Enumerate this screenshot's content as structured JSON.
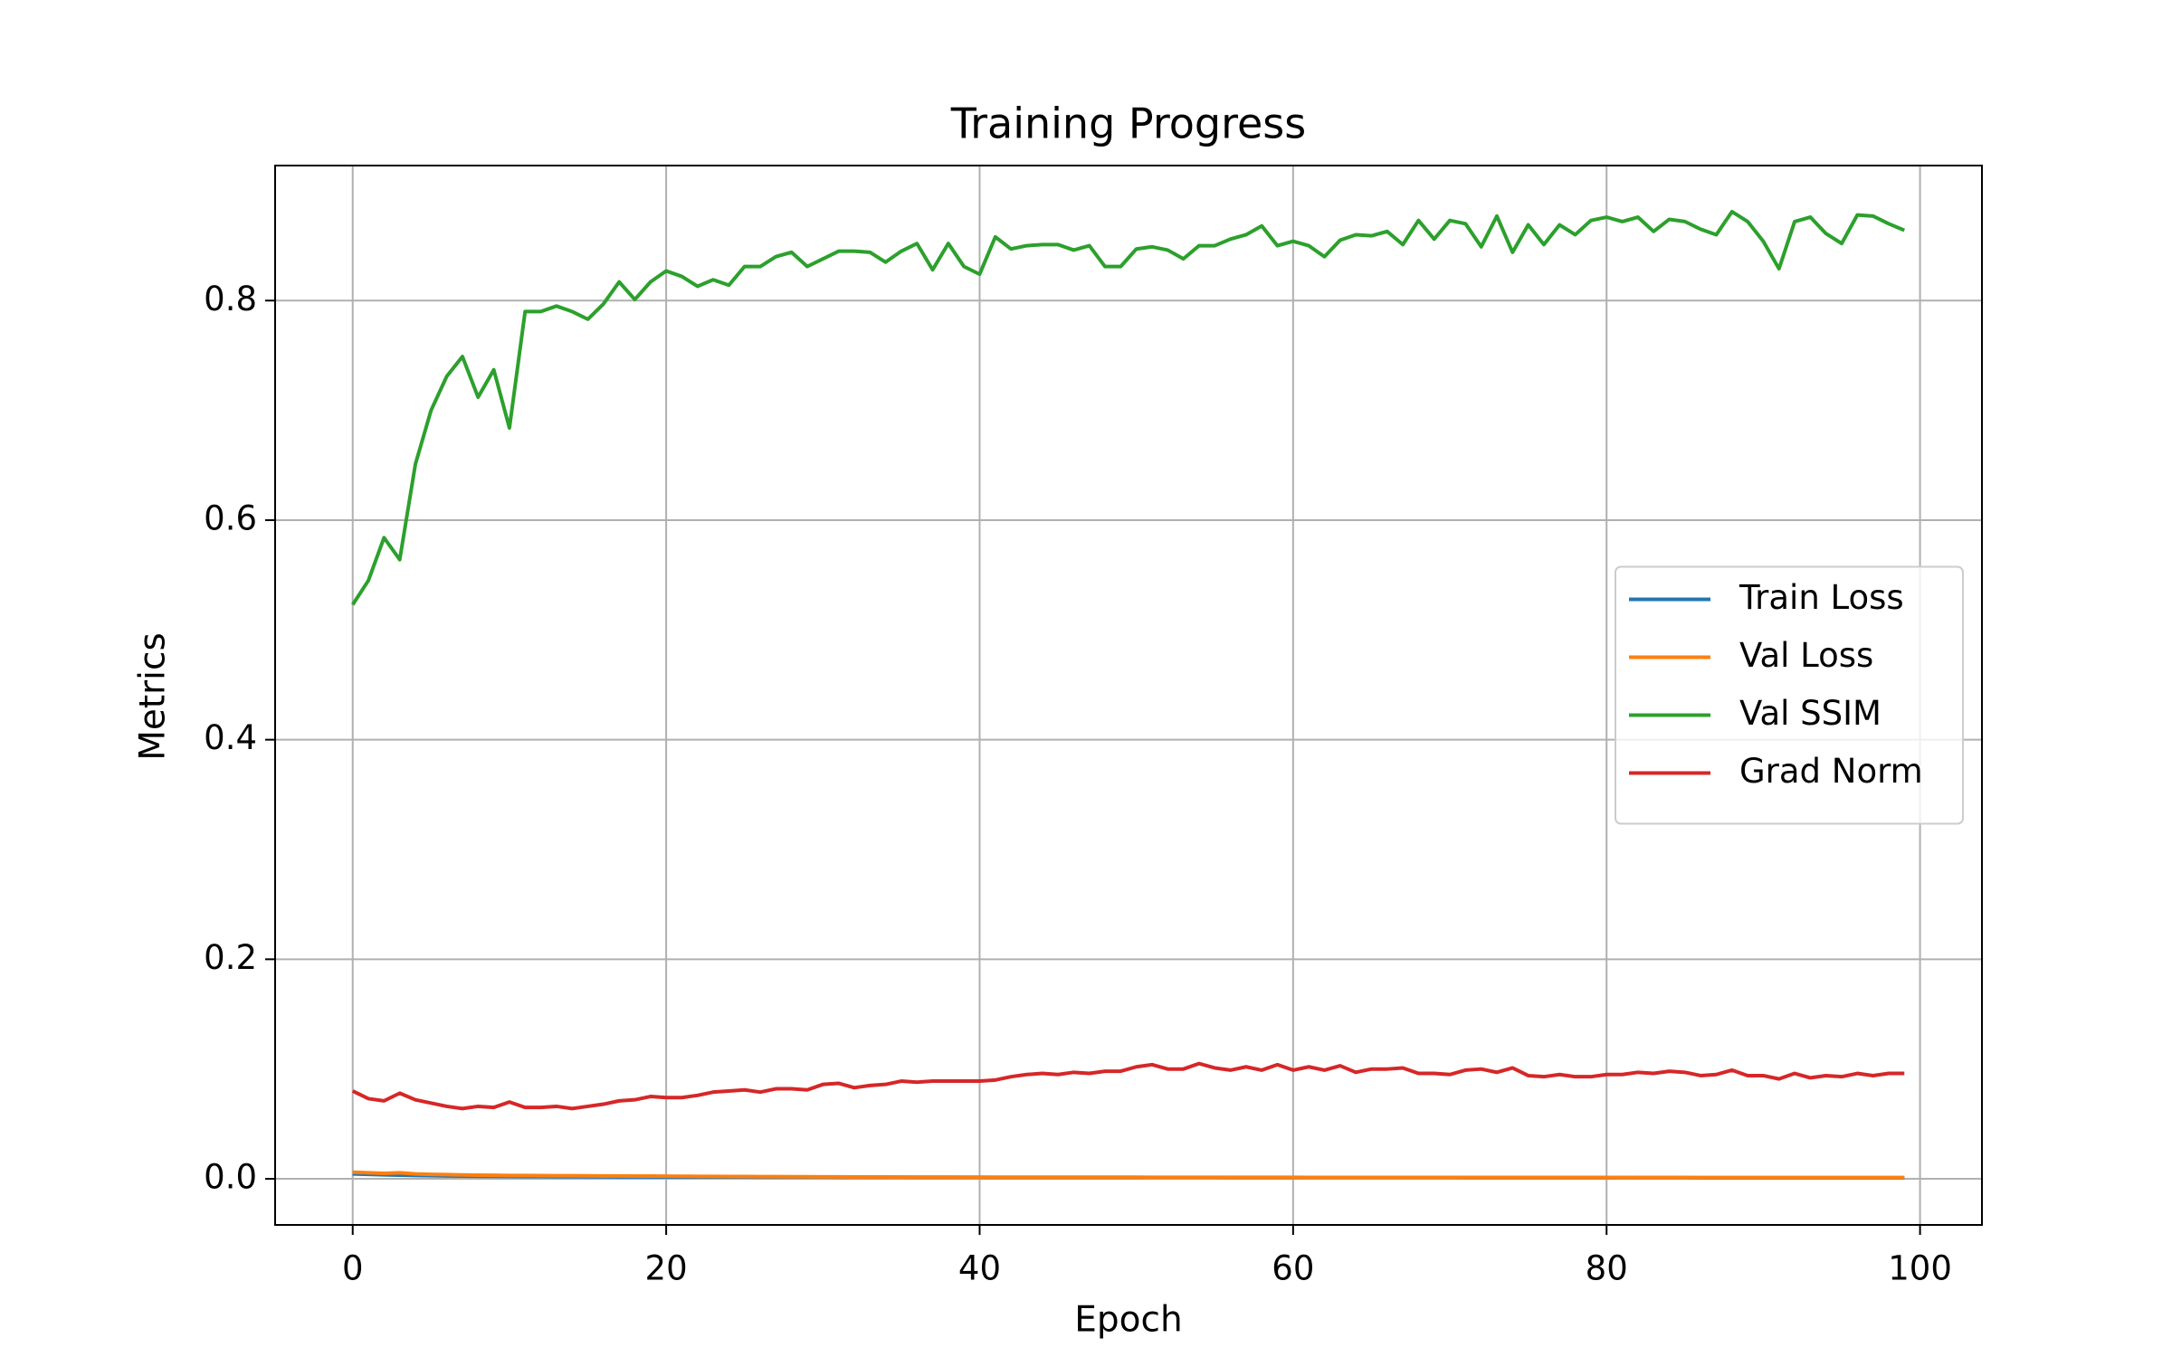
{
  "chart_data": {
    "type": "line",
    "title": "Training Progress",
    "x_label": "Epoch",
    "y_label": "Metrics",
    "x": [
      0,
      1,
      2,
      3,
      4,
      5,
      6,
      7,
      8,
      9,
      10,
      11,
      12,
      13,
      14,
      15,
      16,
      17,
      18,
      19,
      20,
      21,
      22,
      23,
      24,
      25,
      26,
      27,
      28,
      29,
      30,
      31,
      32,
      33,
      34,
      35,
      36,
      37,
      38,
      39,
      40,
      41,
      42,
      43,
      44,
      45,
      46,
      47,
      48,
      49,
      50,
      51,
      52,
      53,
      54,
      55,
      56,
      57,
      58,
      59,
      60,
      61,
      62,
      63,
      64,
      65,
      66,
      67,
      68,
      69,
      70,
      71,
      72,
      73,
      74,
      75,
      76,
      77,
      78,
      79,
      80,
      81,
      82,
      83,
      84,
      85,
      86,
      87,
      88,
      89,
      90,
      91,
      92,
      93,
      94,
      95,
      96,
      97,
      98,
      99
    ],
    "series": [
      {
        "name": "Train Loss",
        "color": "#1f77b4",
        "values": [
          0.0045,
          0.004,
          0.0036,
          0.0033,
          0.003,
          0.0028,
          0.0026,
          0.0025,
          0.0024,
          0.0023,
          0.0022,
          0.0021,
          0.0021,
          0.002,
          0.002,
          0.0019,
          0.0019,
          0.0018,
          0.0018,
          0.0018,
          0.0017,
          0.0017,
          0.0017,
          0.0017,
          0.0017,
          0.0017,
          0.0016,
          0.0016,
          0.0016,
          0.0016,
          0.0016,
          0.0015,
          0.0015,
          0.0015,
          0.0015,
          0.0015,
          0.0014,
          0.0014,
          0.0014,
          0.0014,
          0.0014,
          0.0013,
          0.0013,
          0.0013,
          0.0013,
          0.0013,
          0.0013,
          0.0013,
          0.0013,
          0.0013,
          0.0013,
          0.0013,
          0.0013,
          0.0013,
          0.0013,
          0.0013,
          0.0012,
          0.0012,
          0.0012,
          0.0012,
          0.0012,
          0.0012,
          0.0012,
          0.0012,
          0.0012,
          0.0012,
          0.0012,
          0.0012,
          0.0012,
          0.0012,
          0.0012,
          0.0011,
          0.0011,
          0.0011,
          0.0011,
          0.0011,
          0.0011,
          0.0011,
          0.0011,
          0.0011,
          0.0011,
          0.0011,
          0.0011,
          0.0011,
          0.0011,
          0.0011,
          0.001,
          0.001,
          0.001,
          0.001,
          0.001,
          0.001,
          0.001,
          0.001,
          0.001,
          0.001,
          0.001,
          0.001,
          0.001,
          0.001
        ]
      },
      {
        "name": "Val Loss",
        "color": "#ff7f0e",
        "values": [
          0.006,
          0.0055,
          0.005,
          0.0055,
          0.0045,
          0.004,
          0.0038,
          0.0035,
          0.0033,
          0.0032,
          0.003,
          0.003,
          0.0029,
          0.0028,
          0.0028,
          0.0027,
          0.0026,
          0.0026,
          0.0025,
          0.0025,
          0.0024,
          0.0023,
          0.0022,
          0.0022,
          0.0021,
          0.0021,
          0.002,
          0.002,
          0.0019,
          0.0019,
          0.0018,
          0.0018,
          0.0017,
          0.0017,
          0.0017,
          0.0016,
          0.0016,
          0.0016,
          0.0016,
          0.0015,
          0.0015,
          0.0015,
          0.0015,
          0.0015,
          0.0015,
          0.0015,
          0.0015,
          0.0015,
          0.0015,
          0.0015,
          0.0015,
          0.0014,
          0.0014,
          0.0014,
          0.0014,
          0.0014,
          0.0014,
          0.0014,
          0.0014,
          0.0014,
          0.0014,
          0.0013,
          0.0013,
          0.0013,
          0.0013,
          0.0013,
          0.0013,
          0.0013,
          0.0013,
          0.0013,
          0.0013,
          0.0013,
          0.0013,
          0.0013,
          0.0013,
          0.0013,
          0.0013,
          0.0013,
          0.0013,
          0.0013,
          0.0013,
          0.0012,
          0.0012,
          0.0012,
          0.0012,
          0.0012,
          0.0012,
          0.0012,
          0.0012,
          0.0012,
          0.0012,
          0.0012,
          0.0012,
          0.0012,
          0.0012,
          0.0012,
          0.0012,
          0.0012,
          0.0012,
          0.0012
        ]
      },
      {
        "name": "Val SSIM",
        "color": "#2ca02c",
        "values": [
          0.523,
          0.545,
          0.584,
          0.564,
          0.651,
          0.7,
          0.731,
          0.749,
          0.712,
          0.737,
          0.684,
          0.79,
          0.79,
          0.795,
          0.79,
          0.783,
          0.797,
          0.817,
          0.801,
          0.817,
          0.827,
          0.822,
          0.813,
          0.819,
          0.814,
          0.831,
          0.831,
          0.84,
          0.844,
          0.831,
          0.838,
          0.845,
          0.845,
          0.844,
          0.835,
          0.845,
          0.852,
          0.828,
          0.852,
          0.831,
          0.824,
          0.858,
          0.847,
          0.85,
          0.851,
          0.851,
          0.846,
          0.85,
          0.831,
          0.831,
          0.847,
          0.849,
          0.846,
          0.838,
          0.85,
          0.85,
          0.856,
          0.86,
          0.868,
          0.85,
          0.854,
          0.85,
          0.84,
          0.855,
          0.86,
          0.859,
          0.863,
          0.851,
          0.873,
          0.856,
          0.873,
          0.87,
          0.849,
          0.877,
          0.844,
          0.869,
          0.851,
          0.869,
          0.86,
          0.873,
          0.876,
          0.872,
          0.876,
          0.863,
          0.874,
          0.872,
          0.865,
          0.86,
          0.881,
          0.872,
          0.854,
          0.829,
          0.872,
          0.876,
          0.861,
          0.852,
          0.878,
          0.877,
          0.87,
          0.864
        ]
      },
      {
        "name": "Grad Norm",
        "color": "#d62728",
        "values": [
          0.08,
          0.073,
          0.071,
          0.078,
          0.072,
          0.069,
          0.066,
          0.064,
          0.066,
          0.065,
          0.07,
          0.065,
          0.065,
          0.066,
          0.064,
          0.066,
          0.068,
          0.071,
          0.072,
          0.075,
          0.074,
          0.074,
          0.076,
          0.079,
          0.08,
          0.081,
          0.079,
          0.082,
          0.082,
          0.081,
          0.086,
          0.087,
          0.083,
          0.085,
          0.086,
          0.089,
          0.088,
          0.089,
          0.089,
          0.089,
          0.089,
          0.09,
          0.093,
          0.095,
          0.096,
          0.095,
          0.097,
          0.096,
          0.098,
          0.098,
          0.102,
          0.104,
          0.1,
          0.1,
          0.105,
          0.101,
          0.099,
          0.102,
          0.099,
          0.104,
          0.099,
          0.102,
          0.099,
          0.103,
          0.097,
          0.1,
          0.1,
          0.101,
          0.096,
          0.096,
          0.095,
          0.099,
          0.1,
          0.097,
          0.101,
          0.094,
          0.093,
          0.095,
          0.093,
          0.093,
          0.095,
          0.095,
          0.097,
          0.096,
          0.098,
          0.097,
          0.094,
          0.095,
          0.099,
          0.094,
          0.094,
          0.091,
          0.096,
          0.092,
          0.094,
          0.093,
          0.096,
          0.094,
          0.096,
          0.096
        ]
      }
    ],
    "xlim": [
      -4.95,
      103.95
    ],
    "ylim": [
      -0.042,
      0.923
    ],
    "xticks": [
      0,
      20,
      40,
      60,
      80,
      100
    ],
    "yticks": [
      {
        "value": 0,
        "label": "0.0"
      },
      0.2,
      0.4,
      0.6,
      0.8
    ],
    "grid": true,
    "legend": "center right"
  }
}
